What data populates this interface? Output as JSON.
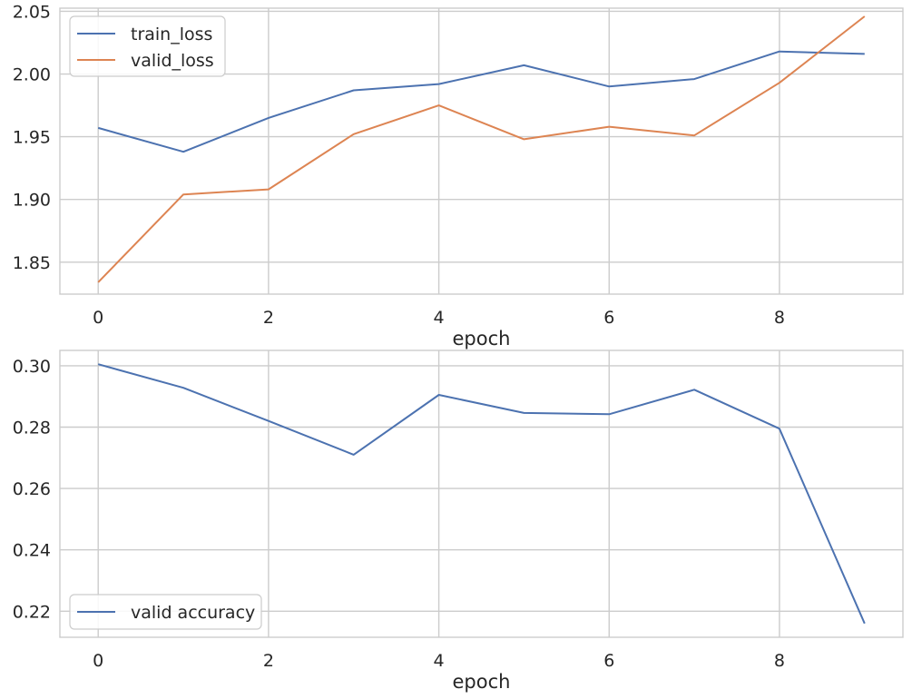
{
  "chart_data": [
    {
      "type": "line",
      "xlabel": "epoch",
      "ylabel": "",
      "x": [
        0,
        1,
        2,
        3,
        4,
        5,
        6,
        7,
        8,
        9
      ],
      "xlim": [
        -0.45,
        9.45
      ],
      "ylim": [
        1.8245,
        2.0525
      ],
      "xticks": [
        0,
        2,
        4,
        6,
        8
      ],
      "xtick_labels": [
        "0",
        "2",
        "4",
        "6",
        "8"
      ],
      "yticks": [
        1.85,
        1.9,
        1.95,
        2.0,
        2.05
      ],
      "ytick_labels": [
        "1.85",
        "1.90",
        "1.95",
        "2.00",
        "2.05"
      ],
      "grid": true,
      "legend_position": "top-left",
      "series": [
        {
          "name": "train_loss",
          "color": "#4c72b0",
          "values": [
            1.957,
            1.938,
            1.965,
            1.987,
            1.992,
            2.007,
            1.99,
            1.996,
            2.018,
            2.016
          ]
        },
        {
          "name": "valid_loss",
          "color": "#dd8452",
          "values": [
            1.834,
            1.904,
            1.908,
            1.952,
            1.975,
            1.948,
            1.958,
            1.951,
            1.993,
            2.046
          ]
        }
      ]
    },
    {
      "type": "line",
      "xlabel": "epoch",
      "ylabel": "",
      "x": [
        0,
        1,
        2,
        3,
        4,
        5,
        6,
        7,
        8,
        9
      ],
      "xlim": [
        -0.45,
        9.45
      ],
      "ylim": [
        0.2115,
        0.305
      ],
      "xticks": [
        0,
        2,
        4,
        6,
        8
      ],
      "xtick_labels": [
        "0",
        "2",
        "4",
        "6",
        "8"
      ],
      "yticks": [
        0.22,
        0.24,
        0.26,
        0.28,
        0.3
      ],
      "ytick_labels": [
        "0.22",
        "0.24",
        "0.26",
        "0.28",
        "0.30"
      ],
      "grid": true,
      "legend_position": "bottom-left",
      "series": [
        {
          "name": "valid accuracy",
          "color": "#4c72b0",
          "values": [
            0.3005,
            0.2928,
            0.282,
            0.271,
            0.2905,
            0.2846,
            0.2842,
            0.2922,
            0.2795,
            0.216
          ]
        }
      ]
    }
  ]
}
